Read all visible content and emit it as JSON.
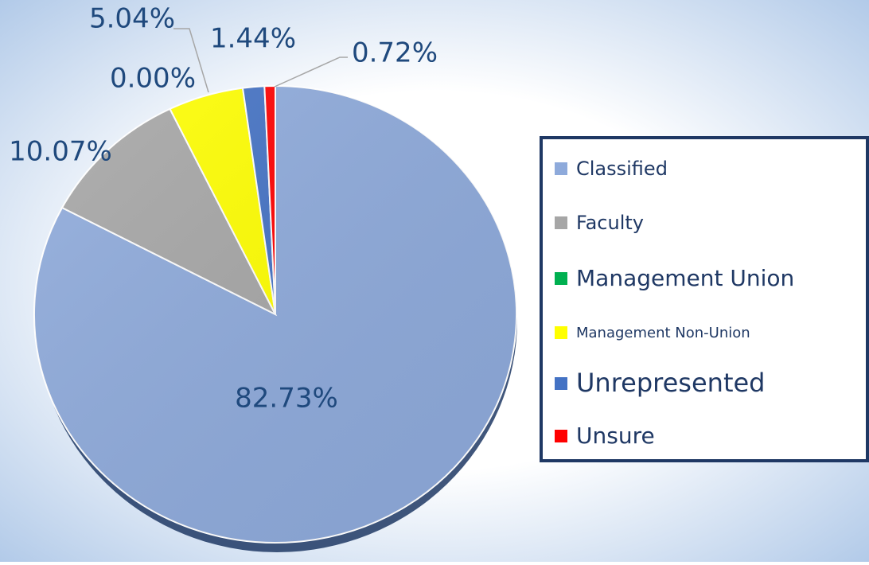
{
  "chart_data": {
    "type": "pie",
    "categories": [
      "Classified",
      "Faculty",
      "Management Union",
      "Management Non-Union",
      "Unrepresented",
      "Unsure"
    ],
    "values": [
      82.73,
      10.07,
      0.0,
      5.04,
      1.44,
      0.72
    ],
    "value_labels": [
      "82.73%",
      "10.07%",
      "0.00%",
      "5.04%",
      "1.44%",
      "0.72%"
    ],
    "colors": [
      "#8eaadb",
      "#a6a6a6",
      "#00b050",
      "#ffff00",
      "#4472c4",
      "#ff0000"
    ],
    "legend": "right"
  }
}
